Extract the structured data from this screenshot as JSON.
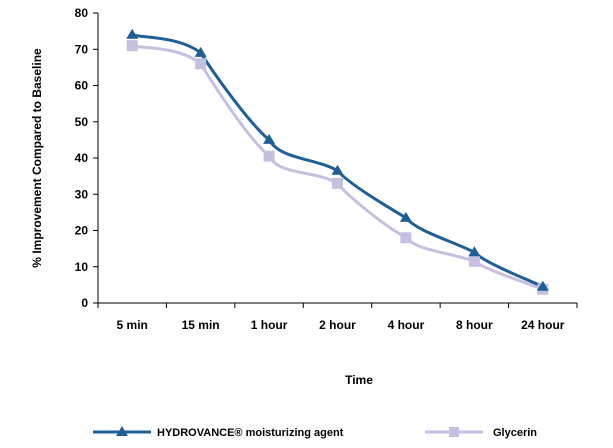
{
  "chart_data": {
    "type": "line",
    "title": "",
    "xlabel": "Time",
    "ylabel": "% Improvement Compared  to Baseline",
    "categories": [
      "5 min",
      "15 min",
      "1 hour",
      "2 hour",
      "4 hour",
      "8 hour",
      "24 hour"
    ],
    "ylim": [
      0,
      80
    ],
    "yticks": [
      0,
      10,
      20,
      30,
      40,
      50,
      60,
      70,
      80
    ],
    "grid": false,
    "legend_position": "bottom",
    "series": [
      {
        "name": "HYDROVANCE® moisturizing agent",
        "values": [
          74,
          69,
          45,
          36.5,
          23.5,
          14,
          4.5
        ],
        "color": "#1f5f96",
        "marker": "triangle"
      },
      {
        "name": "Glycerin",
        "values": [
          71,
          66,
          40.5,
          33,
          18,
          11.5,
          3.8
        ],
        "color": "#c6c0e0",
        "marker": "square"
      }
    ]
  }
}
